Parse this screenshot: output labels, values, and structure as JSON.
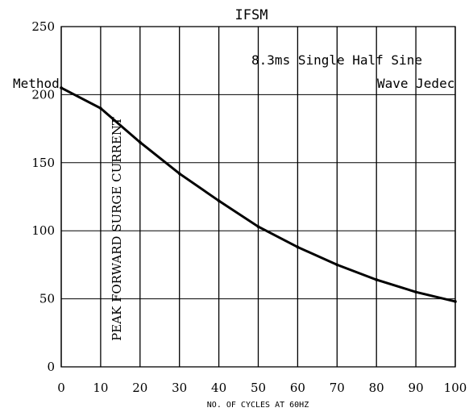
{
  "chart_data": {
    "type": "line",
    "title": "IFSM",
    "subtitle": "8.3ms Single Half Sine",
    "notes": {
      "left": "Method",
      "right": "Wave Jedec"
    },
    "xlabel": "NO. OF CYCLES AT 60HZ",
    "ylabel": "PEAK FORWARD SURGE CURRENT",
    "xlim": [
      0,
      100
    ],
    "ylim": [
      0,
      250
    ],
    "x_ticks": [
      "0",
      "10",
      "20",
      "30",
      "40",
      "50",
      "60",
      "70",
      "80",
      "90",
      "100"
    ],
    "y_ticks": [
      "0",
      "50",
      "100",
      "150",
      "200",
      "250"
    ],
    "grid": true,
    "series": [
      {
        "x": [
          0,
          10,
          20,
          30,
          40,
          50,
          60,
          70,
          80,
          90,
          100
        ],
        "values": [
          205,
          190,
          165,
          142,
          122,
          103,
          88,
          75,
          64,
          55,
          48
        ]
      }
    ],
    "color": "#000000"
  }
}
